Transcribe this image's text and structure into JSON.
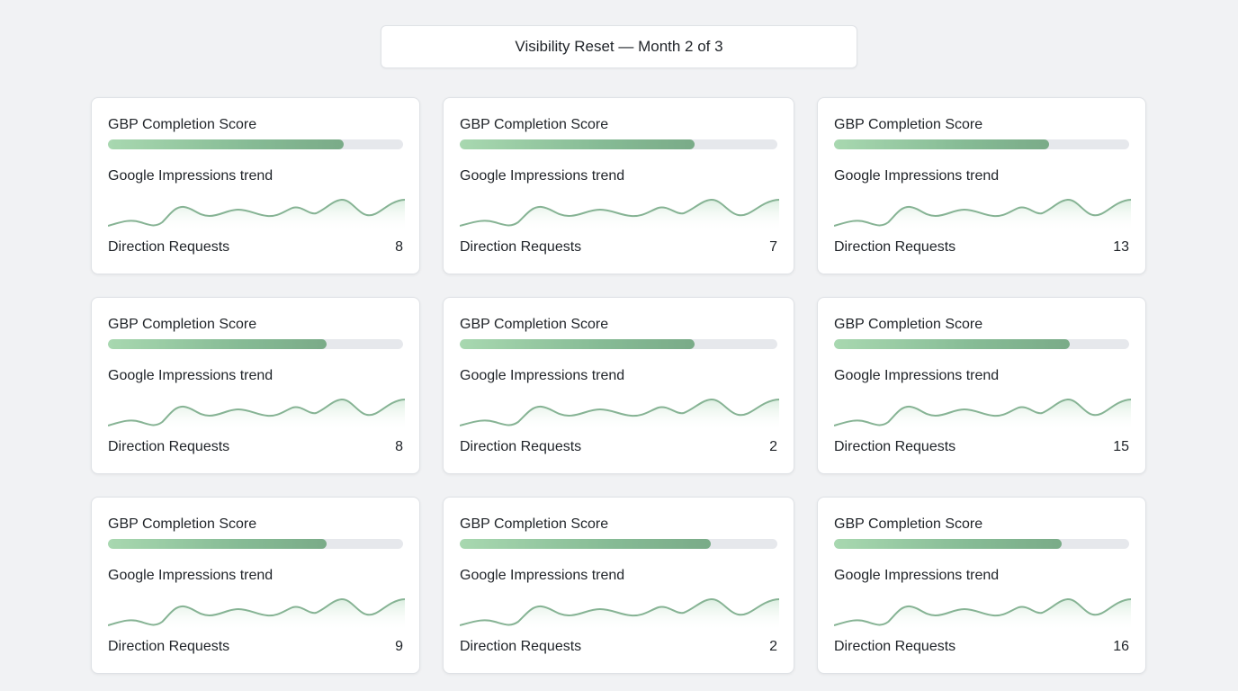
{
  "header": {
    "title": "Visibility Reset — Month 2 of 3"
  },
  "colors": {
    "bar_start": "#a8d8b0",
    "bar_end": "#7aab88",
    "track": "#e6e8ec",
    "sparkline": "#86b394"
  },
  "cards": [
    {
      "score_label": "GBP Completion Score",
      "score_fraction": 0.8,
      "trend_label": "Google Impressions trend",
      "requests_label": "Direction Requests",
      "requests_value": "8"
    },
    {
      "score_label": "GBP Completion Score",
      "score_fraction": 0.74,
      "trend_label": "Google Impressions trend",
      "requests_label": "Direction Requests",
      "requests_value": "7"
    },
    {
      "score_label": "GBP Completion Score",
      "score_fraction": 0.73,
      "trend_label": "Google Impressions trend",
      "requests_label": "Direction Requests",
      "requests_value": "13"
    },
    {
      "score_label": "GBP Completion Score",
      "score_fraction": 0.74,
      "trend_label": "Google Impressions trend",
      "requests_label": "Direction Requests",
      "requests_value": "8"
    },
    {
      "score_label": "GBP Completion Score",
      "score_fraction": 0.74,
      "trend_label": "Google Impressions trend",
      "requests_label": "Direction Requests",
      "requests_value": "2"
    },
    {
      "score_label": "GBP Completion Score",
      "score_fraction": 0.8,
      "trend_label": "Google Impressions trend",
      "requests_label": "Direction Requests",
      "requests_value": "15"
    },
    {
      "score_label": "GBP Completion Score",
      "score_fraction": 0.74,
      "trend_label": "Google Impressions trend",
      "requests_label": "Direction Requests",
      "requests_value": "9"
    },
    {
      "score_label": "GBP Completion Score",
      "score_fraction": 0.79,
      "trend_label": "Google Impressions trend",
      "requests_label": "Direction Requests",
      "requests_value": "2"
    },
    {
      "score_label": "GBP Completion Score",
      "score_fraction": 0.77,
      "trend_label": "Google Impressions trend",
      "requests_label": "Direction Requests",
      "requests_value": "16"
    }
  ]
}
